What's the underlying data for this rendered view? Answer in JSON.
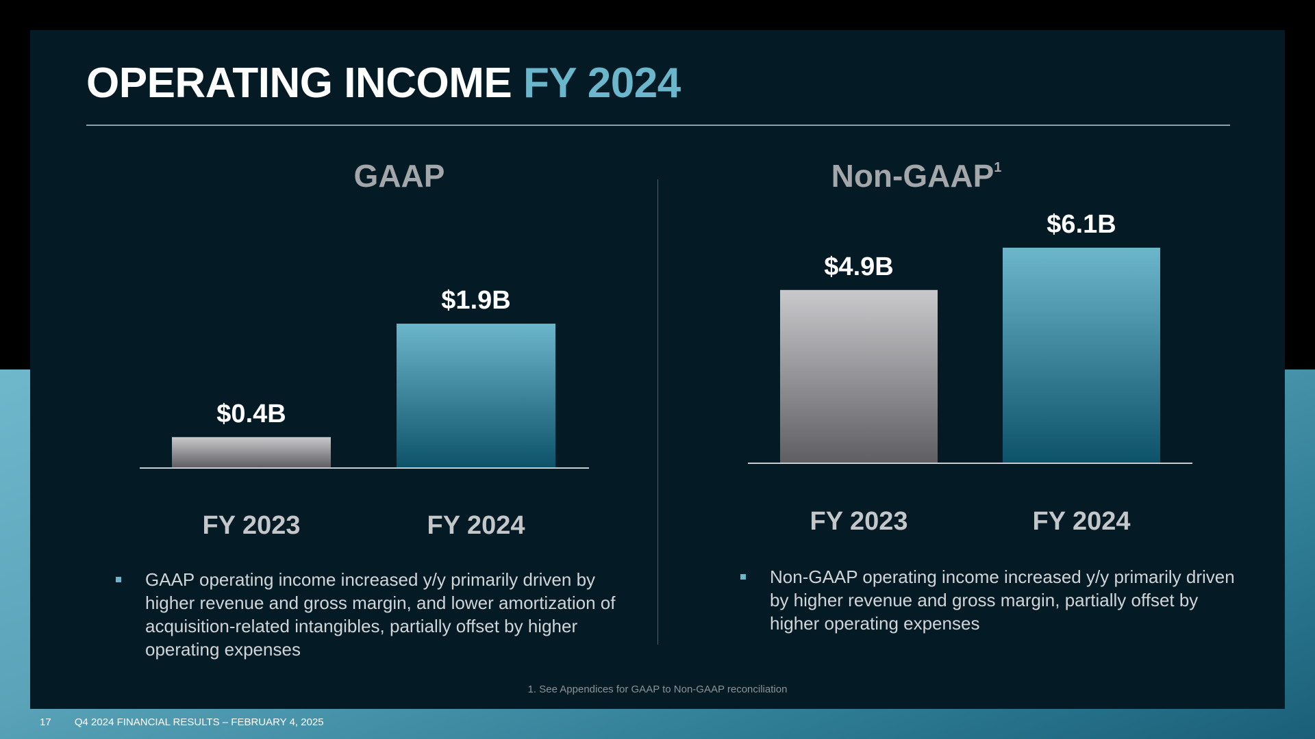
{
  "slide": {
    "title_main": "OPERATING INCOME",
    "title_accent": "FY 2024",
    "footnote": "1. See Appendices for GAAP to Non-GAAP reconciliation",
    "page_number": "17",
    "footer_text": "Q4 2024 FINANCIAL RESULTS – FEBRUARY 4, 2025"
  },
  "colors": {
    "accent": "#6cb6cb",
    "gray_bar_top": "#c9c9cc",
    "gray_bar_bottom": "#5f5f63",
    "teal_bar_top": "#6cb6cb",
    "teal_bar_bottom": "#0d5269"
  },
  "chart_data": [
    {
      "type": "bar",
      "title": "GAAP",
      "categories": [
        "FY 2023",
        "FY 2024"
      ],
      "values": [
        0.4,
        1.9
      ],
      "data_labels": [
        "$0.4B",
        "$1.9B"
      ],
      "unit": "$B",
      "bullet": "GAAP operating income increased y/y primarily driven by higher revenue and gross margin, and lower amortization of acquisition-related intangibles, partially offset by higher operating expenses"
    },
    {
      "type": "bar",
      "title": "Non-GAAP",
      "title_superscript": "1",
      "categories": [
        "FY 2023",
        "FY 2024"
      ],
      "values": [
        4.9,
        6.1
      ],
      "data_labels": [
        "$4.9B",
        "$6.1B"
      ],
      "unit": "$B",
      "bullet": "Non-GAAP operating income increased y/y primarily driven by higher revenue and gross margin, partially offset by higher operating expenses"
    }
  ]
}
